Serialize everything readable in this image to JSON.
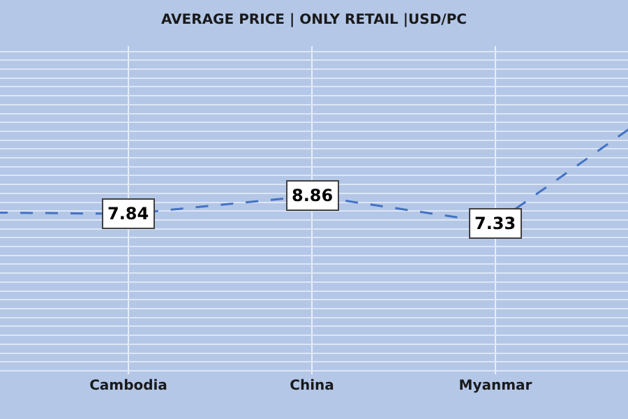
{
  "chart_data": {
    "type": "line",
    "title": "AVERAGE PRICE | ONLY RETAIL |USD/PC",
    "categories": [
      null,
      "Cambodia",
      "China",
      "Myanmar",
      null
    ],
    "values": [
      7.95,
      7.84,
      8.86,
      7.33,
      14.6
    ],
    "value_labels": [
      null,
      "7.84",
      "8.86",
      "7.33",
      null
    ],
    "color": "#4472c4",
    "line_style": "dashed",
    "ylim": [
      -1.2,
      17.3
    ],
    "yticks": [
      {
        "value": -1,
        "label": null
      },
      {
        "value": -0.5,
        "label": null
      },
      {
        "value": 0,
        "label": null
      },
      {
        "value": 0.5,
        "label": null
      },
      {
        "value": 1,
        "label": null
      },
      {
        "value": 1.5,
        "label": null
      },
      {
        "value": 2,
        "label": null
      },
      {
        "value": 2.5,
        "label": null
      },
      {
        "value": 3,
        "label": null
      },
      {
        "value": 3.5,
        "label": null
      },
      {
        "value": 4,
        "label": null
      },
      {
        "value": 4.5,
        "label": null
      },
      {
        "value": 5,
        "label": null
      },
      {
        "value": 5.5,
        "label": null
      },
      {
        "value": 6,
        "label": null
      },
      {
        "value": 6.5,
        "label": null
      },
      {
        "value": 7,
        "label": null
      },
      {
        "value": 7.5,
        "label": null
      },
      {
        "value": 8,
        "label": null
      },
      {
        "value": 8.5,
        "label": null
      },
      {
        "value": 9,
        "label": null
      },
      {
        "value": 9.5,
        "label": null
      },
      {
        "value": 10,
        "label": null
      },
      {
        "value": 10.5,
        "label": null
      },
      {
        "value": 11,
        "label": null
      },
      {
        "value": 11.5,
        "label": null
      },
      {
        "value": 12,
        "label": null
      },
      {
        "value": 12.5,
        "label": null
      },
      {
        "value": 13,
        "label": null
      },
      {
        "value": 13.5,
        "label": null
      },
      {
        "value": 14,
        "label": null
      },
      {
        "value": 14.5,
        "label": null
      },
      {
        "value": 15,
        "label": null
      },
      {
        "value": 15.5,
        "label": null
      },
      {
        "value": 16,
        "label": null
      },
      {
        "value": 16.5,
        "label": null
      },
      {
        "value": 17,
        "label": null
      }
    ],
    "tick_labels": "x",
    "grid": true,
    "legend": false
  }
}
